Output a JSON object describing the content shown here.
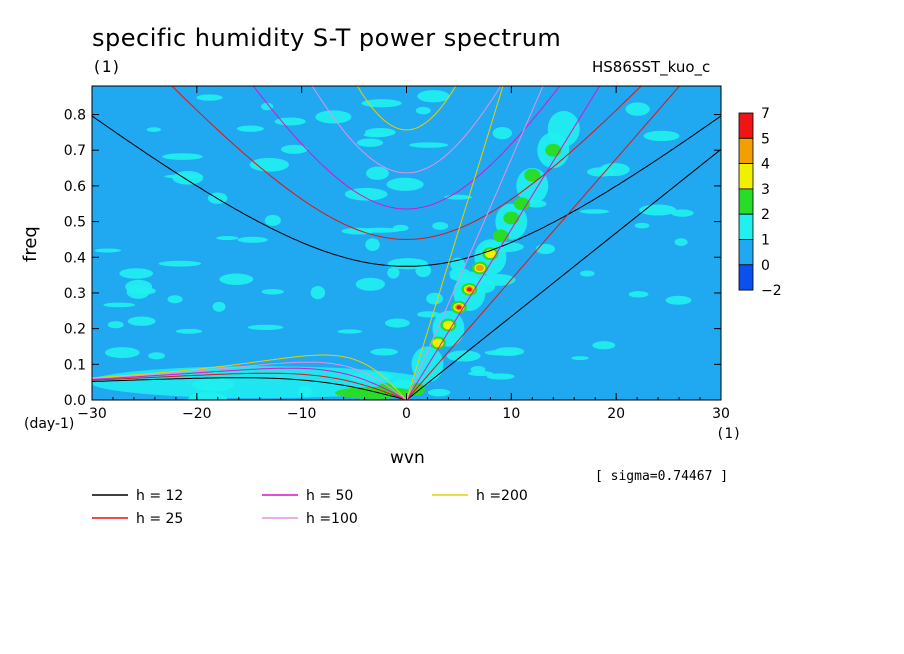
{
  "chart_data": {
    "type": "heatmap",
    "title": "specific humidity S-T power spectrum",
    "unit_label_top": "(1)",
    "run_name": "HS86SST_kuo_c",
    "xlabel": "wvn",
    "ylabel": "freq",
    "x_unit": "(1)",
    "y_unit": "(day-1)",
    "xlim": [
      -30,
      30
    ],
    "ylim": [
      0,
      0.88
    ],
    "x_ticks": [
      -30,
      -20,
      -10,
      0,
      10,
      20,
      30
    ],
    "x_tick_labels": [
      "−30",
      "−20",
      "−10",
      "0",
      "10",
      "20",
      "30"
    ],
    "y_ticks": [
      0.0,
      0.1,
      0.2,
      0.3,
      0.4,
      0.5,
      0.6,
      0.7,
      0.8
    ],
    "y_tick_labels": [
      "0.0",
      "0.1",
      "0.2",
      "0.3",
      "0.4",
      "0.5",
      "0.6",
      "0.7",
      "0.8"
    ],
    "sigma_text": "[ sigma=0.74467 ]",
    "colorbar": {
      "levels": [
        "7",
        "5",
        "4",
        "3",
        "2",
        "1",
        "0",
        "−2"
      ],
      "colors": [
        "#f01414",
        "#f0a000",
        "#f0f000",
        "#28dc28",
        "#20f0f0",
        "#20a8f0",
        "#0a50f0"
      ]
    },
    "dispersion_curves": [
      {
        "name": "h = 12",
        "h": 12,
        "color": "#000000"
      },
      {
        "name": "h = 25",
        "h": 25,
        "color": "#e01414"
      },
      {
        "name": "h = 50",
        "h": 50,
        "color": "#dc14c8"
      },
      {
        "name": "h =100",
        "h": 100,
        "color": "#e690e6"
      },
      {
        "name": "h =200",
        "h": 200,
        "color": "#e6d200"
      }
    ],
    "spectral_peaks": [
      {
        "wvn": 5,
        "freq": 0.26,
        "level": 7
      },
      {
        "wvn": 6,
        "freq": 0.31,
        "level": 7
      },
      {
        "wvn": 7,
        "freq": 0.37,
        "level": 4
      },
      {
        "wvn": 4,
        "freq": 0.21,
        "level": 3
      },
      {
        "wvn": 3,
        "freq": 0.16,
        "level": 3
      },
      {
        "wvn": 8,
        "freq": 0.41,
        "level": 3
      },
      {
        "wvn": 9,
        "freq": 0.46,
        "level": 2
      },
      {
        "wvn": 10,
        "freq": 0.51,
        "level": 2
      },
      {
        "wvn": 11,
        "freq": 0.55,
        "level": 2
      },
      {
        "wvn": 12,
        "freq": 0.63,
        "level": 2
      },
      {
        "wvn": 14,
        "freq": 0.7,
        "level": 2
      },
      {
        "wvn": -2,
        "freq": 0.03,
        "level": 2
      },
      {
        "wvn": 1,
        "freq": 0.03,
        "level": 2
      }
    ]
  }
}
